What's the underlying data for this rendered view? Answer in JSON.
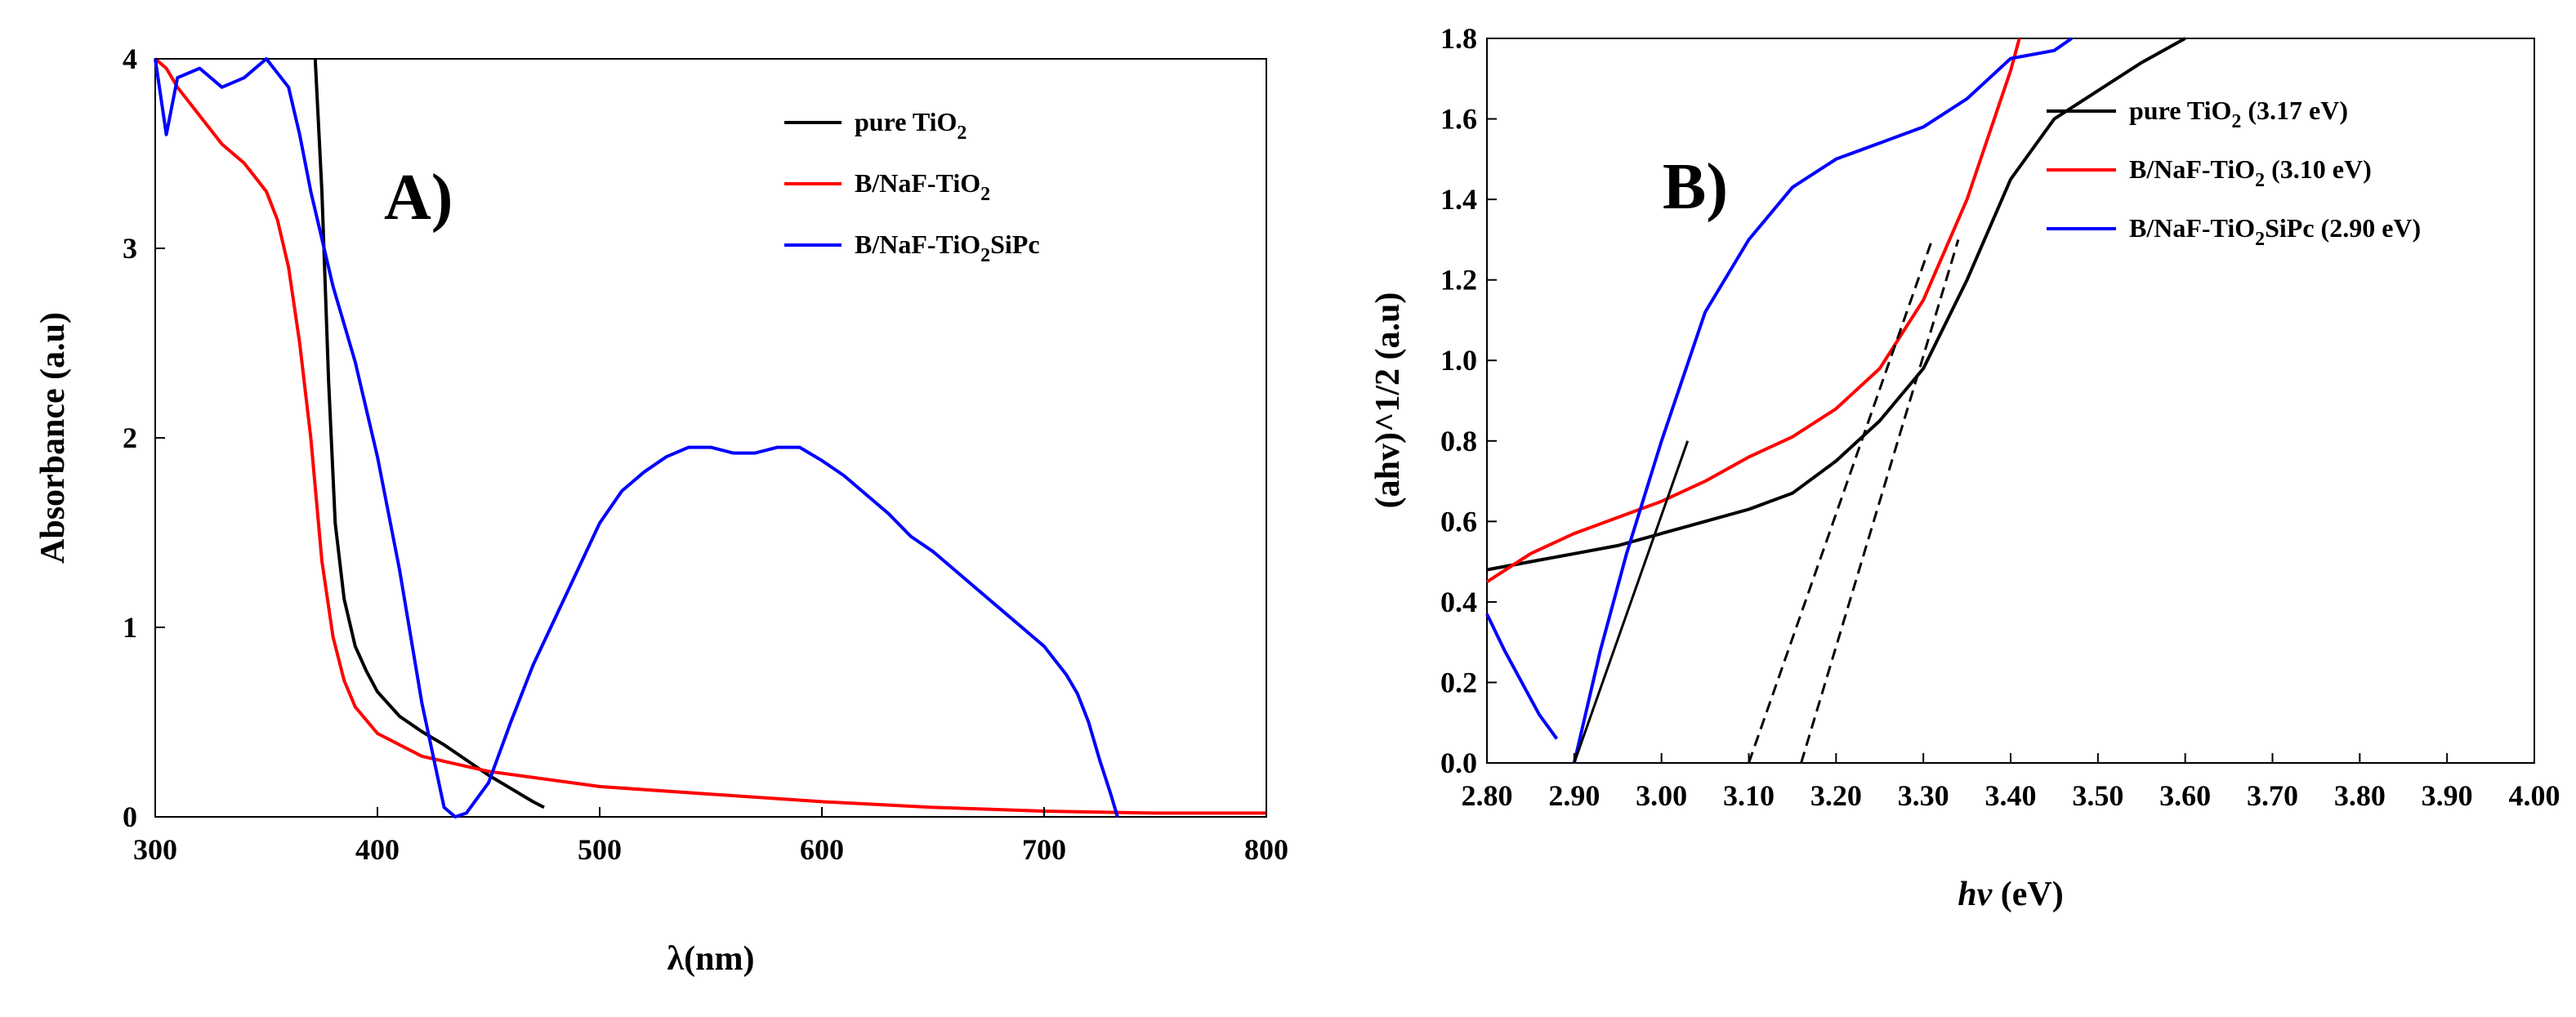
{
  "chart_data": [
    {
      "type": "line",
      "panel_label": "A)",
      "xlabel": "λ(nm)",
      "ylabel": "Absorbance (a.u)",
      "xlim": [
        300,
        800
      ],
      "ylim": [
        0,
        4
      ],
      "xticks": [
        "300",
        "400",
        "500",
        "600",
        "700",
        "800"
      ],
      "yticks": [
        "0",
        "1",
        "2",
        "3",
        "4"
      ],
      "legend_position": "top-right",
      "series": [
        {
          "name_base": "pure TiO",
          "name_sub": "2",
          "name_tail": "",
          "color": "#000000",
          "x": [
            372,
            375,
            378,
            381,
            385,
            390,
            395,
            400,
            410,
            420,
            430,
            440,
            450,
            460,
            470,
            475
          ],
          "y": [
            4.0,
            3.3,
            2.3,
            1.55,
            1.15,
            0.9,
            0.77,
            0.66,
            0.53,
            0.45,
            0.38,
            0.3,
            0.22,
            0.15,
            0.08,
            0.05
          ]
        },
        {
          "name_base": "B/NaF-TiO",
          "name_sub": "2",
          "name_tail": "",
          "color": "#ff0000",
          "x": [
            300,
            305,
            310,
            320,
            330,
            340,
            350,
            355,
            360,
            365,
            370,
            375,
            380,
            385,
            390,
            400,
            420,
            450,
            500,
            550,
            600,
            650,
            700,
            750,
            800
          ],
          "y": [
            4.0,
            3.95,
            3.85,
            3.7,
            3.55,
            3.45,
            3.3,
            3.15,
            2.9,
            2.5,
            2.0,
            1.35,
            0.95,
            0.72,
            0.58,
            0.44,
            0.32,
            0.24,
            0.16,
            0.12,
            0.08,
            0.05,
            0.03,
            0.02,
            0.02
          ]
        },
        {
          "name_base": "B/NaF-TiO",
          "name_sub": "2",
          "name_tail": "SiPc",
          "color": "#0000ff",
          "x": [
            300,
            305,
            310,
            320,
            330,
            340,
            350,
            360,
            365,
            370,
            375,
            380,
            390,
            400,
            410,
            420,
            430,
            435,
            440,
            450,
            460,
            470,
            480,
            490,
            500,
            510,
            520,
            530,
            540,
            550,
            560,
            570,
            580,
            590,
            600,
            610,
            620,
            630,
            640,
            650,
            660,
            670,
            680,
            690,
            700,
            710,
            715,
            720,
            725,
            730,
            733
          ],
          "y": [
            4.0,
            3.6,
            3.9,
            3.95,
            3.85,
            3.9,
            4.0,
            3.85,
            3.6,
            3.3,
            3.05,
            2.8,
            2.4,
            1.9,
            1.3,
            0.6,
            0.05,
            0.0,
            0.02,
            0.18,
            0.5,
            0.8,
            1.05,
            1.3,
            1.55,
            1.72,
            1.82,
            1.9,
            1.95,
            1.95,
            1.92,
            1.92,
            1.95,
            1.95,
            1.88,
            1.8,
            1.7,
            1.6,
            1.48,
            1.4,
            1.3,
            1.2,
            1.1,
            1.0,
            0.9,
            0.75,
            0.65,
            0.5,
            0.3,
            0.12,
            0.0
          ]
        }
      ]
    },
    {
      "type": "line",
      "panel_label": "B)",
      "xlabel_italic": "hv",
      "xlabel_rest": " (eV)",
      "ylabel": "(ahv)^1/2 (a.u)",
      "xlim": [
        2.8,
        4.0
      ],
      "ylim": [
        0.0,
        1.8
      ],
      "xticks": [
        "2.80",
        "2.90",
        "3.00",
        "3.10",
        "3.20",
        "3.30",
        "3.40",
        "3.50",
        "3.60",
        "3.70",
        "3.80",
        "3.90",
        "4.00"
      ],
      "yticks": [
        "0.0",
        "0.2",
        "0.4",
        "0.6",
        "0.8",
        "1.0",
        "1.2",
        "1.4",
        "1.6",
        "1.8"
      ],
      "legend_position": "top-right",
      "series": [
        {
          "name_base": "pure TiO",
          "name_sub": "2",
          "name_tail": " (3.17 eV)",
          "color": "#000000",
          "x": [
            2.8,
            2.85,
            2.9,
            2.95,
            3.0,
            3.05,
            3.1,
            3.15,
            3.2,
            3.25,
            3.3,
            3.35,
            3.4,
            3.45,
            3.5,
            3.55,
            3.6
          ],
          "y": [
            0.48,
            0.5,
            0.52,
            0.54,
            0.57,
            0.6,
            0.63,
            0.67,
            0.75,
            0.85,
            0.98,
            1.2,
            1.45,
            1.6,
            1.67,
            1.74,
            1.8
          ]
        },
        {
          "name_base": "B/NaF-TiO",
          "name_sub": "2",
          "name_tail": " (3.10 eV)",
          "color": "#ff0000",
          "x": [
            2.8,
            2.85,
            2.9,
            2.95,
            3.0,
            3.05,
            3.1,
            3.15,
            3.2,
            3.25,
            3.3,
            3.35,
            3.4,
            3.41
          ],
          "y": [
            0.45,
            0.52,
            0.57,
            0.61,
            0.65,
            0.7,
            0.76,
            0.81,
            0.88,
            0.98,
            1.15,
            1.4,
            1.72,
            1.8
          ]
        },
        {
          "name_base": "B/NaF-TiO",
          "name_sub": "2",
          "name_tail": "SiPc (2.90 eV)",
          "color": "#0000ff",
          "x": [
            2.8,
            2.82,
            2.84,
            2.86,
            2.88
          ],
          "y": [
            0.37,
            0.28,
            0.2,
            0.12,
            0.06
          ]
        },
        {
          "name_base": "B/NaF-TiO",
          "name_sub": "2",
          "name_tail": "SiPc (2.90 eV)",
          "color": "#0000ff",
          "continuation": true,
          "x": [
            2.9,
            2.93,
            2.96,
            3.0,
            3.05,
            3.1,
            3.15,
            3.2,
            3.25,
            3.3,
            3.35,
            3.4,
            3.45,
            3.47
          ],
          "y": [
            0.0,
            0.28,
            0.52,
            0.8,
            1.12,
            1.3,
            1.43,
            1.5,
            1.54,
            1.58,
            1.65,
            1.75,
            1.77,
            1.8
          ]
        },
        {
          "name_base": "",
          "name_sub": "",
          "name_tail": "",
          "color": "#000000",
          "fit": true,
          "x": [
            2.9,
            3.03
          ],
          "y": [
            0.0,
            0.8
          ]
        },
        {
          "name_base": "",
          "name_sub": "",
          "name_tail": "",
          "color": "#000000",
          "fit": true,
          "dashed": true,
          "x": [
            3.1,
            3.31
          ],
          "y": [
            0.0,
            1.3
          ]
        },
        {
          "name_base": "",
          "name_sub": "",
          "name_tail": "",
          "color": "#000000",
          "fit": true,
          "dashed": true,
          "x": [
            3.16,
            3.34
          ],
          "y": [
            0.0,
            1.3
          ]
        }
      ]
    }
  ]
}
